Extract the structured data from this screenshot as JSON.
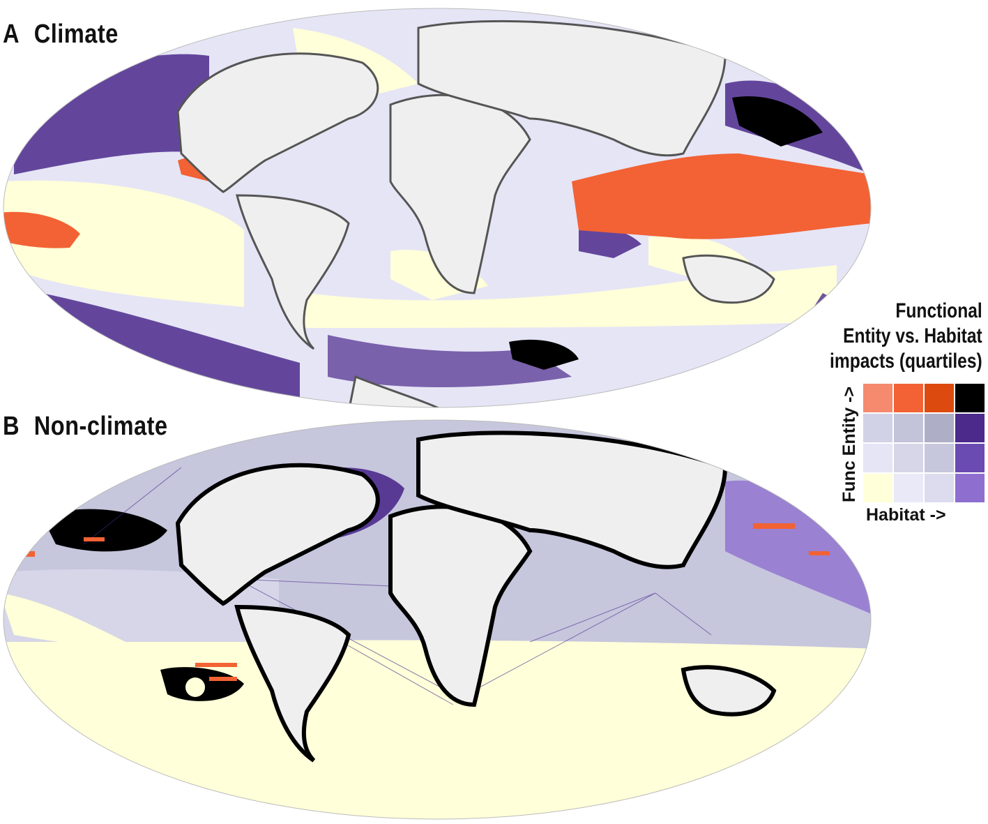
{
  "panels": [
    {
      "letter": "A",
      "title": "Climate"
    },
    {
      "letter": "B",
      "title": "Non-climate"
    }
  ],
  "legend": {
    "title_lines": [
      "Functional",
      "Entity vs. Habitat",
      "impacts (quartiles)"
    ],
    "y_label": "Func Entity ->",
    "x_label": "Habitat ->",
    "grid_rows": [
      [
        "#f58a6f",
        "#f26234",
        "#dc4a0f",
        "#000000"
      ],
      [
        "#d2d2e6",
        "#c3c3d9",
        "#aeaec6",
        "#4b2a8c"
      ],
      [
        "#e6e5f6",
        "#d6d6e8",
        "#c6c6dd",
        "#6a4bb1"
      ],
      [
        "#ffffd9",
        "#eae9f8",
        "#dcdcee",
        "#8e6fd0"
      ]
    ]
  },
  "colors": {
    "land": "#efefef",
    "coast": "#555555",
    "ice": "#cfcfcf",
    "yellow": "#ffffd9",
    "lavender_light": "#e6e5f6",
    "lavender": "#d2d2e6",
    "grey_purple": "#aeaec6",
    "purple": "#4b2a8c",
    "purple_mid": "#6a4bb1",
    "orange": "#f26234",
    "orange_dark": "#dc4a0f",
    "black": "#000000"
  }
}
